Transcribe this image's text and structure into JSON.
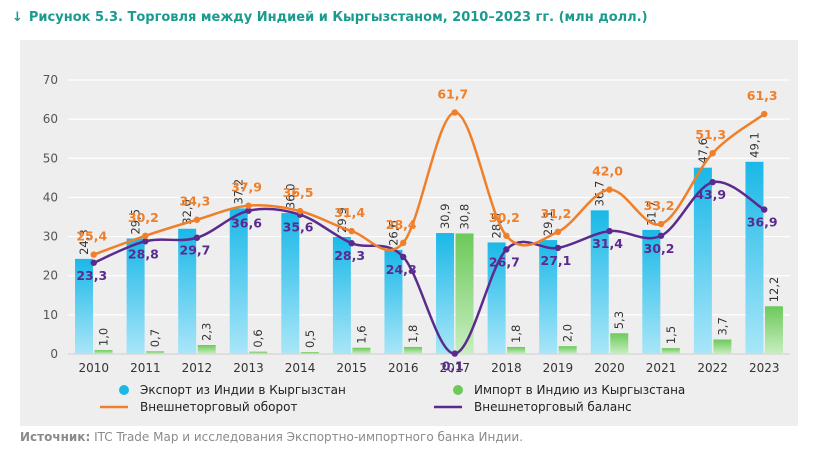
{
  "figure": {
    "arrow": "↓",
    "title": "Рисунок 5.3. Торговля между Индией и Кыргызстаном, 2010–2023 гг. (млн долл.)"
  },
  "source": {
    "label": "Источник:",
    "text": "ITC Trade Map и исследования Экспортно-импортного банка Индии."
  },
  "colors": {
    "title": "#1a9b8f",
    "export_bar": "#1ab8e8",
    "import_bar": "#6cc95a",
    "turnover_line": "#f07f2a",
    "balance_line": "#5b2a8e",
    "panel_bg": "#eeeeee"
  },
  "chart_data": {
    "type": "bar",
    "categories": [
      "2010",
      "2011",
      "2012",
      "2013",
      "2014",
      "2015",
      "2016",
      "2017",
      "2018",
      "2019",
      "2020",
      "2021",
      "2022",
      "2023"
    ],
    "ylim": [
      0,
      70
    ],
    "yticks": [
      0,
      10,
      20,
      30,
      40,
      50,
      60,
      70
    ],
    "grid": true,
    "legend_position": "bottom",
    "series": [
      {
        "name": "Экспорт из Индии в Кыргызстан",
        "kind": "bar",
        "values": [
          24.3,
          29.5,
          32.0,
          37.2,
          36.0,
          29.9,
          26.6,
          30.9,
          28.5,
          29.1,
          36.7,
          31.7,
          47.6,
          49.1
        ],
        "labels": [
          "24,3",
          "29,5",
          "32,0",
          "37,2",
          "36,0",
          "29,9",
          "26,6",
          "30,9",
          "28,5",
          "29,1",
          "36,7",
          "31,7",
          "47,6",
          "49,1"
        ]
      },
      {
        "name": "Импорт в Индию из Кыргызстана",
        "kind": "bar",
        "values": [
          1.0,
          0.7,
          2.3,
          0.6,
          0.5,
          1.6,
          1.8,
          30.8,
          1.8,
          2.0,
          5.3,
          1.5,
          3.7,
          12.2
        ],
        "labels": [
          "1,0",
          "0,7",
          "2,3",
          "0,6",
          "0,5",
          "1,6",
          "1,8",
          "30,8",
          "1,8",
          "2,0",
          "5,3",
          "1,5",
          "3,7",
          "12,2"
        ]
      },
      {
        "name": "Внешнеторговый оборот",
        "kind": "line",
        "values": [
          25.4,
          30.2,
          34.3,
          37.9,
          36.5,
          31.4,
          28.4,
          61.7,
          30.2,
          31.2,
          42.0,
          33.2,
          51.3,
          61.3
        ],
        "labels": [
          "25,4",
          "30,2",
          "34,3",
          "37,9",
          "36,5",
          "31,4",
          "28,4",
          "61,7",
          "30,2",
          "31,2",
          "42,0",
          "33,2",
          "51,3",
          "61,3"
        ]
      },
      {
        "name": "Внешнеторговый баланс",
        "kind": "line",
        "values": [
          23.3,
          28.8,
          29.7,
          36.6,
          35.6,
          28.3,
          24.8,
          0.1,
          26.7,
          27.1,
          31.4,
          30.2,
          43.9,
          36.9
        ],
        "labels": [
          "23,3",
          "28,8",
          "29,7",
          "36,6",
          "35,6",
          "28,3",
          "24,8",
          "0,1",
          "26,7",
          "27,1",
          "31,4",
          "30,2",
          "43,9",
          "36,9"
        ]
      }
    ]
  }
}
